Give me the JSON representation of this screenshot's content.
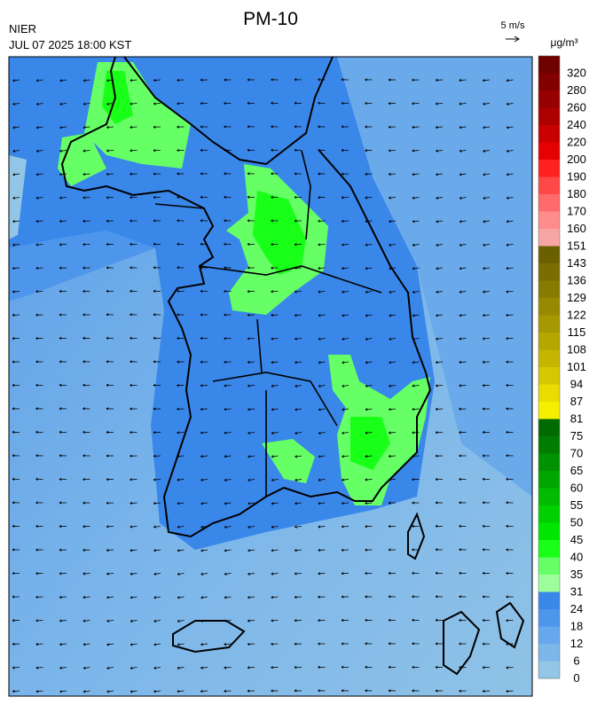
{
  "header": {
    "title": "PM-10",
    "agency": "NIER",
    "timestamp": "JUL 07 2025 18:00 KST",
    "wind_scale": "5 m/s",
    "unit": "μg/m³"
  },
  "colorbar": {
    "levels": [
      320,
      280,
      260,
      240,
      220,
      200,
      190,
      180,
      170,
      160,
      151,
      143,
      136,
      129,
      122,
      115,
      108,
      101,
      94,
      87,
      81,
      75,
      70,
      65,
      60,
      55,
      50,
      45,
      40,
      35,
      31,
      24,
      18,
      12,
      6,
      0
    ],
    "colors": [
      "#6e0000",
      "#820000",
      "#960000",
      "#ac0000",
      "#c80000",
      "#e60000",
      "#ff2020",
      "#ff4848",
      "#ff6a6a",
      "#ff8c8c",
      "#f7a4a4",
      "#6b6000",
      "#7a6e00",
      "#887c00",
      "#978a00",
      "#a69800",
      "#b5a600",
      "#c5b600",
      "#d6c800",
      "#e8dc00",
      "#f5f000",
      "#006b00",
      "#007d00",
      "#009200",
      "#00a600",
      "#00bb00",
      "#00d000",
      "#00e600",
      "#18ff18",
      "#66ff66",
      "#9cff9c",
      "#3a87ea",
      "#4d96ec",
      "#66a8ee",
      "#7cb6ea",
      "#93c6e6"
    ]
  }
}
